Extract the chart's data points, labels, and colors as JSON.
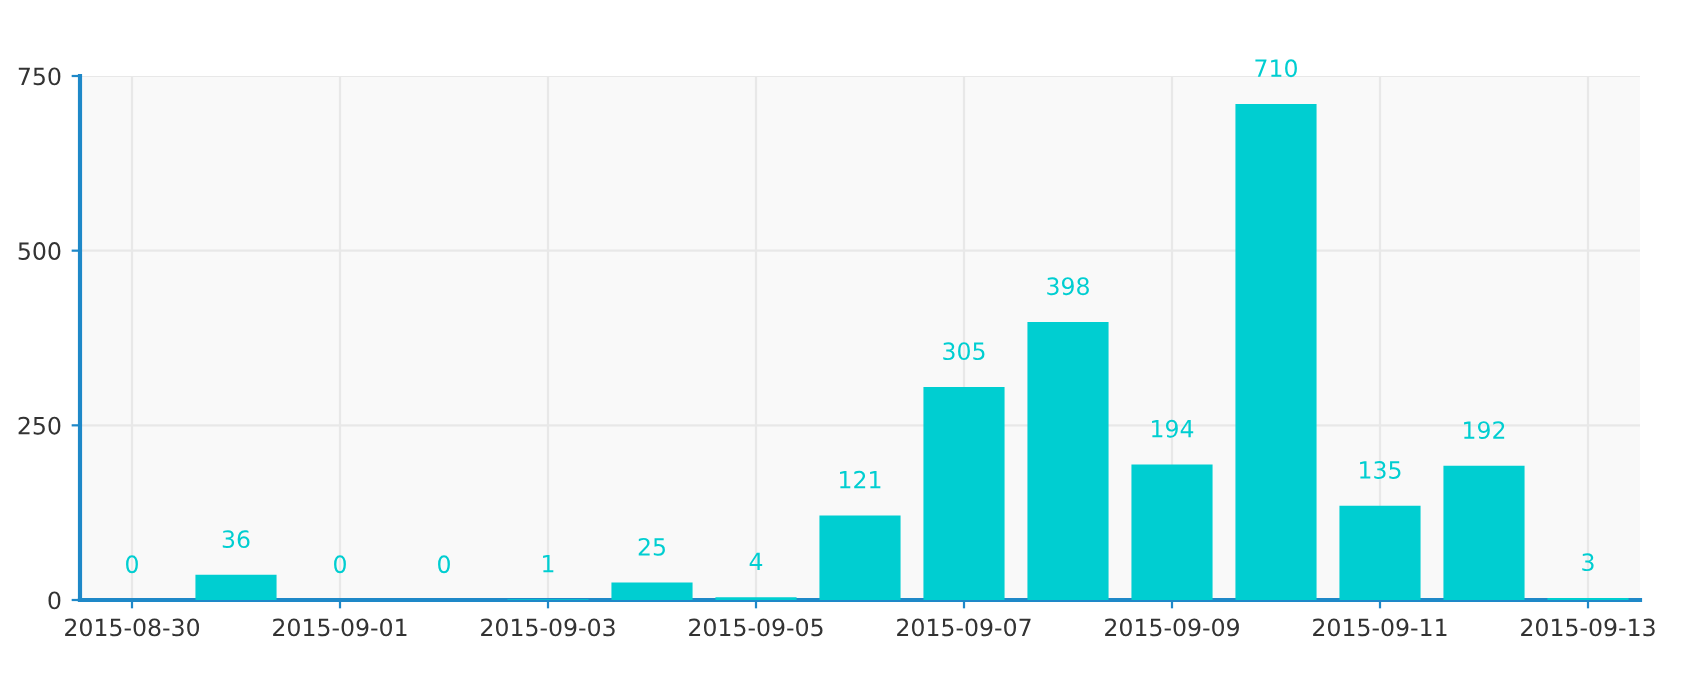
{
  "chart_data": {
    "type": "bar",
    "x": [
      "2015-08-30",
      "2015-08-31",
      "2015-09-01",
      "2015-09-02",
      "2015-09-03",
      "2015-09-04",
      "2015-09-05",
      "2015-09-06",
      "2015-09-07",
      "2015-09-08",
      "2015-09-09",
      "2015-09-10",
      "2015-09-11",
      "2015-09-12",
      "2015-09-13"
    ],
    "values": [
      0,
      36,
      0,
      0,
      1,
      25,
      4,
      121,
      305,
      398,
      194,
      710,
      135,
      192,
      3
    ],
    "color": "#00ced1",
    "xlim": [
      "2015-08-29T12:00",
      "2015-09-13T12:00"
    ],
    "xticks": [
      "2015-08-30",
      "2015-09-01",
      "2015-09-03",
      "2015-09-05",
      "2015-09-07",
      "2015-09-09",
      "2015-09-11",
      "2015-09-13"
    ],
    "ylim": [
      0,
      750
    ],
    "yticks": [
      0,
      250,
      500,
      750
    ],
    "grid": true,
    "data_labels": true,
    "legend": false
  }
}
